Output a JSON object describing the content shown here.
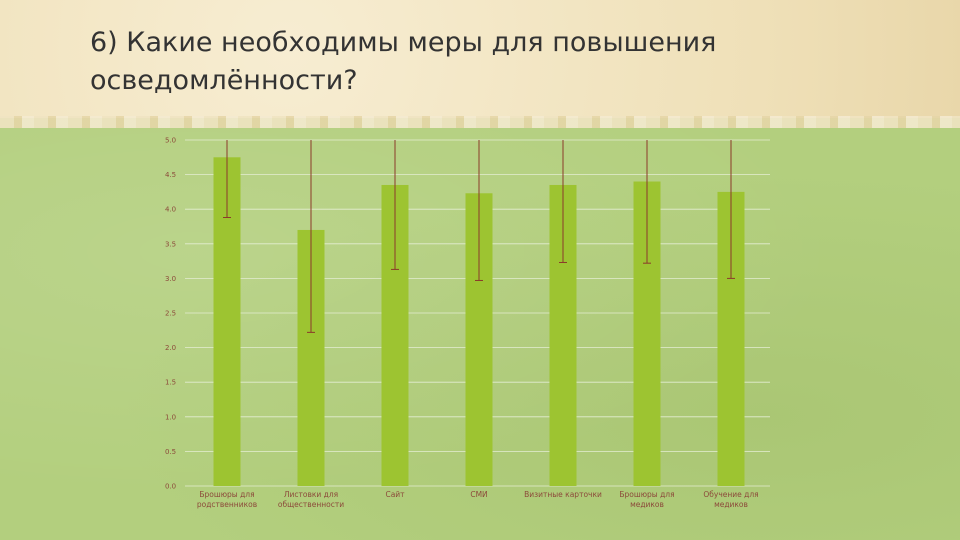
{
  "slide": {
    "title_line1": "6) Какие необходимы меры для повышения",
    "title_line2": "осведомлённости?"
  },
  "colors": {
    "bar": "#9dc431",
    "error_bar": "#8b3a2a",
    "gridline": "#e4edd2",
    "label": "#8c4a3a"
  },
  "chart_data": {
    "type": "bar",
    "title": "",
    "xlabel": "",
    "ylabel": "",
    "ylim": [
      0,
      5
    ],
    "ytick_step": 0.5,
    "ytick_labels": [
      "0.0",
      "0.5",
      "1.0",
      "1.5",
      "2.0",
      "2.5",
      "3.0",
      "3.5",
      "4.0",
      "4.5",
      "5.0"
    ],
    "grid": true,
    "categories": [
      [
        "Брошюры для",
        "родственников"
      ],
      [
        "Листовки для",
        "общественности"
      ],
      [
        "Сайт"
      ],
      [
        "СМИ"
      ],
      [
        "Визитные карточки"
      ],
      [
        "Брошюры для",
        "медиков"
      ],
      [
        "Обучение для",
        "медиков"
      ]
    ],
    "values": [
      4.75,
      3.7,
      4.35,
      4.23,
      4.35,
      4.4,
      4.25
    ],
    "error_low": [
      3.88,
      2.22,
      3.13,
      2.97,
      3.23,
      3.22,
      3.0
    ],
    "error_high": [
      5.0,
      5.0,
      5.0,
      5.0,
      5.0,
      5.0,
      5.0
    ]
  }
}
